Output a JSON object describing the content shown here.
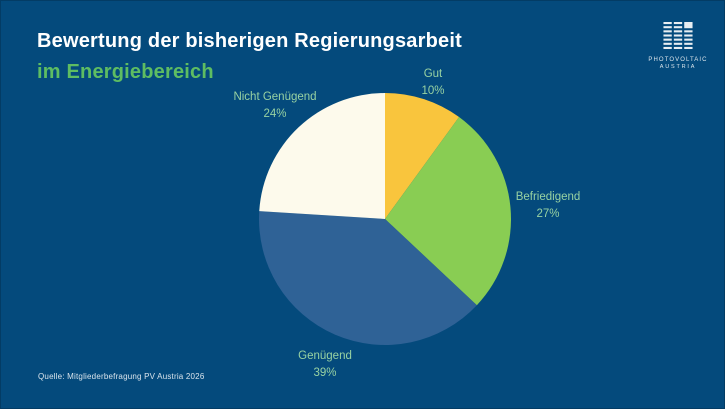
{
  "slide": {
    "title_line1": "Bewertung der bisherigen Regierungsarbeit",
    "title_line2": "im Energiebereich",
    "source": "Quelle: Mitgliederbefragung PV Austria 2026"
  },
  "logo": {
    "icon": "solar-panel-icon",
    "line1": "PHOTOVOLTAIC",
    "line2": "AUSTRIA"
  },
  "colors": {
    "background": "#044A7C",
    "title": "#FFFFFF",
    "subtitle_green": "#5EBD62",
    "label_green": "#98D2A2",
    "logo_text": "#DDE6EC",
    "source_text": "#D9E4EC"
  },
  "chart_data": {
    "type": "pie",
    "title": "Bewertung der bisherigen Regierungsarbeit im Energiebereich",
    "start_angle_deg": 0,
    "direction": "clockwise",
    "legend_position": "labels-outside",
    "slices": [
      {
        "label": "Gut",
        "value": 10,
        "percent_label": "10%",
        "color": "#F9C53D"
      },
      {
        "label": "Befriedigend",
        "value": 27,
        "percent_label": "27%",
        "color": "#89CD53"
      },
      {
        "label": "Genügend",
        "value": 39,
        "percent_label": "39%",
        "color": "#2F6296"
      },
      {
        "label": "Nicht Genügend",
        "value": 24,
        "percent_label": "24%",
        "color": "#FDFAEC"
      }
    ]
  }
}
